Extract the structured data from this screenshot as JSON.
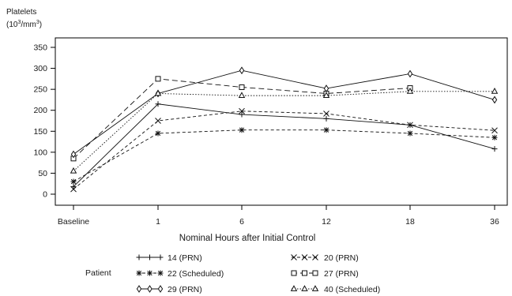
{
  "chart_data": {
    "type": "line",
    "title": "",
    "ylabel_line1": "Platelets",
    "ylabel_line2": "(10",
    "ylabel_sup1": "3",
    "ylabel_mid": "/mm",
    "ylabel_sup2": "3",
    "ylabel_end": ")",
    "xlabel": "Nominal Hours after Initial Control",
    "categories": [
      "Baseline",
      "1",
      "6",
      "12",
      "18",
      "36"
    ],
    "yticks": [
      0,
      50,
      100,
      150,
      200,
      250,
      300,
      350
    ],
    "ylim": [
      -20,
      370
    ],
    "grid": false,
    "legend_title": "Patient",
    "legend_position": "bottom",
    "series": [
      {
        "name": "14 (PRN)",
        "marker": "plus",
        "line": "solid",
        "values": [
          18,
          215,
          190,
          180,
          165,
          108
        ]
      },
      {
        "name": "20 (PRN)",
        "marker": "x",
        "line": "dashed",
        "values": [
          12,
          175,
          198,
          192,
          165,
          152
        ]
      },
      {
        "name": "22 (Scheduled)",
        "marker": "star",
        "line": "dashed",
        "values": [
          30,
          145,
          153,
          153,
          145,
          135
        ]
      },
      {
        "name": "27 (PRN)",
        "marker": "square",
        "line": "longdash",
        "values": [
          85,
          275,
          255,
          240,
          253,
          null
        ]
      },
      {
        "name": "29 (PRN)",
        "marker": "diamond",
        "line": "solid",
        "values": [
          95,
          240,
          295,
          252,
          287,
          225
        ]
      },
      {
        "name": "40 (Scheduled)",
        "marker": "triangle",
        "line": "dotted",
        "values": [
          55,
          240,
          235,
          235,
          245,
          245
        ]
      }
    ]
  }
}
